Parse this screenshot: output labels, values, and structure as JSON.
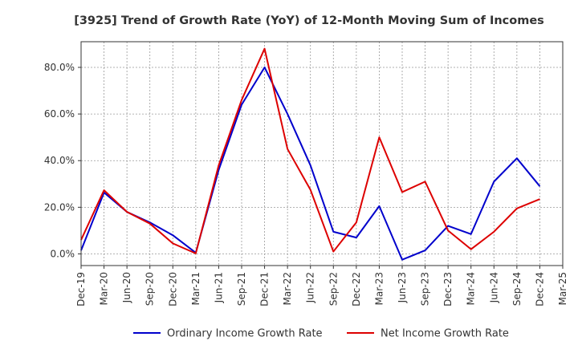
{
  "chart_data": {
    "type": "line",
    "title": "[3925]  Trend of Growth Rate (YoY) of 12-Month Moving Sum of Incomes",
    "xlabel": "",
    "ylabel": "",
    "x": [
      "Dec-19",
      "Mar-20",
      "Jun-20",
      "Sep-20",
      "Dec-20",
      "Mar-21",
      "Jun-21",
      "Sep-21",
      "Dec-21",
      "Mar-22",
      "Jun-22",
      "Sep-22",
      "Dec-22",
      "Mar-23",
      "Jun-23",
      "Sep-23",
      "Dec-23",
      "Mar-24",
      "Jun-24",
      "Sep-24",
      "Dec-24",
      "Mar-25"
    ],
    "ylim": [
      -5,
      91
    ],
    "y_ticks": [
      0,
      20,
      40,
      60,
      80
    ],
    "y_tick_labels": [
      "0.0%",
      "20.0%",
      "40.0%",
      "60.0%",
      "80.0%"
    ],
    "grid": true,
    "legend_position": "bottom",
    "series": [
      {
        "name": "Ordinary Income Growth Rate",
        "color": "#0000cc",
        "values": [
          1.5,
          26.3,
          18.0,
          13.5,
          8.0,
          0.5,
          36.0,
          64.0,
          80.0,
          60.0,
          38.0,
          9.5,
          7.0,
          20.5,
          -2.5,
          1.5,
          12.0,
          8.5,
          31.0,
          41.0,
          29.0,
          null
        ]
      },
      {
        "name": "Net Income Growth Rate",
        "color": "#dd0000",
        "values": [
          6.0,
          27.3,
          18.0,
          13.0,
          4.5,
          0.2,
          38.0,
          66.0,
          88.0,
          45.0,
          27.5,
          1.0,
          13.5,
          50.0,
          26.5,
          31.0,
          10.0,
          2.0,
          9.5,
          19.5,
          23.5,
          null
        ]
      }
    ]
  }
}
